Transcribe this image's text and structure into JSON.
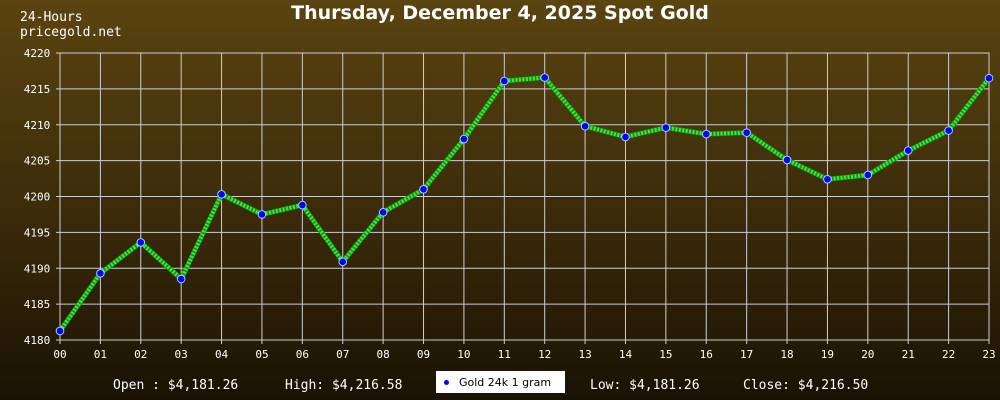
{
  "header": {
    "corner_line1": "24-Hours",
    "corner_line2": "pricegold.net",
    "title": "Thursday, December 4, 2025 Spot Gold"
  },
  "footer": {
    "open_label": "Open :",
    "open_value": "$4,181.26",
    "high_label": "High:",
    "high_value": "$4,216.58",
    "low_label": "Low:",
    "low_value": "$4,181.26",
    "close_label": "Close:",
    "close_value": "$4,216.50"
  },
  "legend": {
    "label": "Gold 24k 1 gram"
  },
  "colors": {
    "line": "#33ee33",
    "marker": "#0000ff",
    "grid": "#cfcfcf"
  },
  "chart_data": {
    "type": "line",
    "title": "Thursday, December 4, 2025 Spot Gold",
    "categories": [
      "00",
      "01",
      "02",
      "03",
      "04",
      "05",
      "06",
      "07",
      "08",
      "09",
      "10",
      "11",
      "12",
      "13",
      "14",
      "15",
      "16",
      "17",
      "18",
      "19",
      "20",
      "21",
      "22",
      "23"
    ],
    "yticks": [
      4180,
      4185,
      4190,
      4195,
      4200,
      4205,
      4210,
      4215,
      4220
    ],
    "ylim": [
      4180,
      4220
    ],
    "grid": true,
    "series": [
      {
        "name": "Gold 24k 1 gram",
        "values": [
          4181.26,
          4189.3,
          4193.6,
          4188.5,
          4200.3,
          4197.5,
          4198.8,
          4190.9,
          4197.8,
          4201.0,
          4208.0,
          4216.1,
          4216.58,
          4209.8,
          4208.3,
          4209.6,
          4208.7,
          4208.9,
          4205.1,
          4202.4,
          4203.0,
          4206.4,
          4209.2,
          4216.5
        ]
      }
    ]
  }
}
